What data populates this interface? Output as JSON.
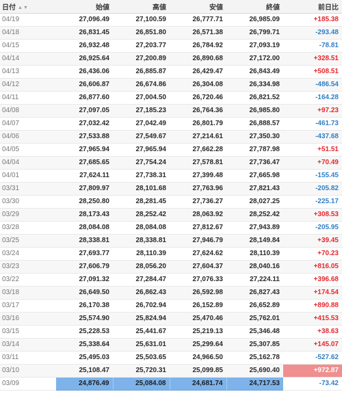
{
  "headers": {
    "date": "日付",
    "open": "始値",
    "high": "高値",
    "low": "安値",
    "close": "終値",
    "change": "前日比",
    "sort_up_icon": "▲",
    "sort_down_icon": "▼"
  },
  "rows": [
    {
      "date": "04/19",
      "open": "27,096.49",
      "high": "27,100.59",
      "low": "26,777.71",
      "close": "26,985.09",
      "change": "+185.38",
      "dir": "up"
    },
    {
      "date": "04/18",
      "open": "26,831.45",
      "high": "26,851.80",
      "low": "26,571.38",
      "close": "26,799.71",
      "change": "-293.48",
      "dir": "down"
    },
    {
      "date": "04/15",
      "open": "26,932.48",
      "high": "27,203.77",
      "low": "26,784.92",
      "close": "27,093.19",
      "change": "-78.81",
      "dir": "down"
    },
    {
      "date": "04/14",
      "open": "26,925.64",
      "high": "27,200.89",
      "low": "26,890.68",
      "close": "27,172.00",
      "change": "+328.51",
      "dir": "up"
    },
    {
      "date": "04/13",
      "open": "26,436.06",
      "high": "26,885.87",
      "low": "26,429.47",
      "close": "26,843.49",
      "change": "+508.51",
      "dir": "up"
    },
    {
      "date": "04/12",
      "open": "26,606.87",
      "high": "26,674.86",
      "low": "26,304.08",
      "close": "26,334.98",
      "change": "-486.54",
      "dir": "down"
    },
    {
      "date": "04/11",
      "open": "26,877.60",
      "high": "27,004.50",
      "low": "26,720.46",
      "close": "26,821.52",
      "change": "-164.28",
      "dir": "down"
    },
    {
      "date": "04/08",
      "open": "27,097.05",
      "high": "27,185.23",
      "low": "26,764.36",
      "close": "26,985.80",
      "change": "+97.23",
      "dir": "up"
    },
    {
      "date": "04/07",
      "open": "27,032.42",
      "high": "27,042.49",
      "low": "26,801.79",
      "close": "26,888.57",
      "change": "-461.73",
      "dir": "down"
    },
    {
      "date": "04/06",
      "open": "27,533.88",
      "high": "27,549.67",
      "low": "27,214.61",
      "close": "27,350.30",
      "change": "-437.68",
      "dir": "down"
    },
    {
      "date": "04/05",
      "open": "27,965.94",
      "high": "27,965.94",
      "low": "27,662.28",
      "close": "27,787.98",
      "change": "+51.51",
      "dir": "up"
    },
    {
      "date": "04/04",
      "open": "27,685.65",
      "high": "27,754.24",
      "low": "27,578.81",
      "close": "27,736.47",
      "change": "+70.49",
      "dir": "up"
    },
    {
      "date": "04/01",
      "open": "27,624.11",
      "high": "27,738.31",
      "low": "27,399.48",
      "close": "27,665.98",
      "change": "-155.45",
      "dir": "down"
    },
    {
      "date": "03/31",
      "open": "27,809.97",
      "high": "28,101.68",
      "low": "27,763.96",
      "close": "27,821.43",
      "change": "-205.82",
      "dir": "down"
    },
    {
      "date": "03/30",
      "open": "28,250.80",
      "high": "28,281.45",
      "low": "27,736.27",
      "close": "28,027.25",
      "change": "-225.17",
      "dir": "down"
    },
    {
      "date": "03/29",
      "open": "28,173.43",
      "high": "28,252.42",
      "low": "28,063.92",
      "close": "28,252.42",
      "change": "+308.53",
      "dir": "up"
    },
    {
      "date": "03/28",
      "open": "28,084.08",
      "high": "28,084.08",
      "low": "27,812.67",
      "close": "27,943.89",
      "change": "-205.95",
      "dir": "down"
    },
    {
      "date": "03/25",
      "open": "28,338.81",
      "high": "28,338.81",
      "low": "27,946.79",
      "close": "28,149.84",
      "change": "+39.45",
      "dir": "up"
    },
    {
      "date": "03/24",
      "open": "27,693.77",
      "high": "28,110.39",
      "low": "27,624.62",
      "close": "28,110.39",
      "change": "+70.23",
      "dir": "up"
    },
    {
      "date": "03/23",
      "open": "27,606.79",
      "high": "28,056.20",
      "low": "27,604.37",
      "close": "28,040.16",
      "change": "+816.05",
      "dir": "up"
    },
    {
      "date": "03/22",
      "open": "27,091.32",
      "high": "27,284.47",
      "low": "27,076.33",
      "close": "27,224.11",
      "change": "+396.68",
      "dir": "up"
    },
    {
      "date": "03/18",
      "open": "26,649.50",
      "high": "26,862.43",
      "low": "26,592.98",
      "close": "26,827.43",
      "change": "+174.54",
      "dir": "up"
    },
    {
      "date": "03/17",
      "open": "26,170.38",
      "high": "26,702.94",
      "low": "26,152.89",
      "close": "26,652.89",
      "change": "+890.88",
      "dir": "up"
    },
    {
      "date": "03/16",
      "open": "25,574.90",
      "high": "25,824.94",
      "low": "25,470.46",
      "close": "25,762.01",
      "change": "+415.53",
      "dir": "up"
    },
    {
      "date": "03/15",
      "open": "25,228.53",
      "high": "25,441.67",
      "low": "25,219.13",
      "close": "25,346.48",
      "change": "+38.63",
      "dir": "up"
    },
    {
      "date": "03/14",
      "open": "25,338.64",
      "high": "25,631.01",
      "low": "25,299.64",
      "close": "25,307.85",
      "change": "+145.07",
      "dir": "up"
    },
    {
      "date": "03/11",
      "open": "25,495.03",
      "high": "25,503.65",
      "low": "24,966.50",
      "close": "25,162.78",
      "change": "-527.62",
      "dir": "down"
    },
    {
      "date": "03/10",
      "open": "25,108.47",
      "high": "25,720.31",
      "low": "25,099.85",
      "close": "25,690.40",
      "change": "+972.87",
      "dir": "up",
      "highlight": true
    },
    {
      "date": "03/09",
      "open": "24,876.49",
      "high": "25,084.08",
      "low": "24,681.74",
      "close": "24,717.53",
      "change": "-73.42",
      "dir": "down",
      "selected": true
    }
  ],
  "colors": {
    "positive": "#e8262b",
    "negative": "#2f7ec7",
    "selection": "#7db3ea",
    "highlight": "#ef8f8f"
  }
}
